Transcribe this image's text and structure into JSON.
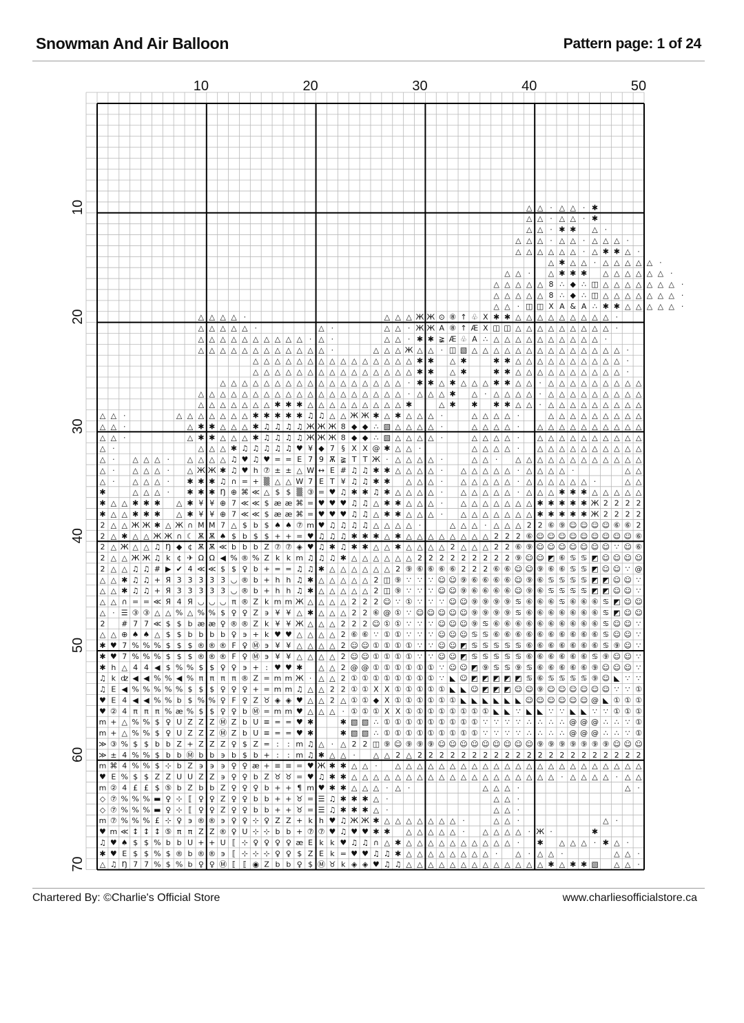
{
  "header": {
    "title": "Snowman And Air Balloon",
    "page_label": "Pattern page: 1 of 24"
  },
  "footer": {
    "charted_by": "Chartered By: ©Charlie's Official Store",
    "website": "www.charliesofficialstore.ca"
  },
  "grid": {
    "columns": 50,
    "rows": 70,
    "column_labels": [
      "10",
      "20",
      "30",
      "40",
      "50"
    ],
    "row_labels": [
      "10",
      "20",
      "30",
      "40",
      "50",
      "60",
      "70"
    ],
    "line_color": "#b8b8b8",
    "major_line_color": "#000000"
  },
  "pattern_rows": [
    [
      "",
      "",
      "",
      "",
      ""
    ],
    [
      "",
      "",
      "",
      "",
      ""
    ],
    [
      "",
      "",
      "",
      "",
      ""
    ],
    [
      "",
      "",
      "",
      "",
      ""
    ],
    [
      "",
      "",
      "",
      "",
      ""
    ],
    [
      "",
      "",
      "",
      "",
      ""
    ],
    [
      "",
      "",
      "",
      "",
      ""
    ],
    [
      "",
      "",
      "",
      "",
      ""
    ],
    [
      "",
      "",
      "",
      "",
      ""
    ],
    [
      "",
      "",
      "",
      "         △",
      "△·△△·✱"
    ],
    [
      "",
      "",
      "",
      "         △",
      "△·△△·✱"
    ],
    [
      "",
      "",
      "",
      "         △",
      "△·✱✱ △·"
    ],
    [
      "",
      "",
      "",
      "        △△",
      "△·△△·△△△·"
    ],
    [
      "",
      "",
      "",
      "        △△",
      "△△△△·△✱✱△·"
    ],
    [
      "",
      "",
      "",
      "",
      " △✱△△·△△△△",
      "△·"
    ],
    [
      "",
      "",
      "",
      "       △△·",
      " △✱✱✱ △△△△",
      "△△·"
    ],
    [
      "",
      "",
      "",
      "      △△△△",
      "△8∴◆∴◫△△△△",
      "△△△·"
    ],
    [
      "",
      "",
      "",
      "      △△△△",
      "△8∴◆∴◫△△△△",
      "△△△·"
    ],
    [
      "",
      "",
      "",
      "      △△·◫",
      "◫XA&A∴✱✱△△",
      "△△△·"
    ],
    [
      "         △",
      "△△△·",
      "      △△△Ж",
      "Ж⊙⑧↑♧X✱✱△△",
      "△△△△△△△·"
    ],
    [
      "         △",
      "△△△△·",
      "△·    △△·Ж",
      "ЖA⑧↑ÆX◫◫△△",
      "△△△△△△△·"
    ],
    [
      "         △",
      "△△△△△△△△△·",
      "△·    △△·✱",
      "✱≩Æ♧A∴△△△△",
      "△△△△△△·"
    ],
    [
      "         △",
      "△△△△△△△△△△",
      "△·   △△△Ж△",
      "△·◫▧△△△△△△",
      "△△△△△△△△·"
    ],
    [
      "",
      "    △△△△△△",
      "△△△△△△△△△✱",
      "✱ △✱  ✱✱△△",
      "△△△△△△△△·"
    ],
    [
      "",
      "    △△△△△△",
      "△△△△△△△△△✱",
      "✱ △✱  ✱✱△△",
      "△△△△△△△△·"
    ],
    [
      "",
      " △△△△△△△△△",
      "△△△△△△△△·✱",
      "✱△✱△△△✱✱△△",
      "·△△△△△△△△△"
    ],
    [
      "         △",
      "△△△△△△△△△△",
      "△△△△△△△△·△",
      "△△✱ △·△△△△",
      "·△△△△△△△△△"
    ],
    [
      "         △",
      "△△△△△△✱✱✱△",
      "△△△△△△△△✱ ",
      " △✱ ✱ ✱✱△△",
      "·△△△△△△△△△"
    ],
    [
      "△△·    △△△",
      "△△△△✱✱✱✱✱♫",
      "♫△△ЖЖ✱△✱△△",
      "△·  △△△△·",
      " △△△△△△△△△"
    ],
    [
      "△△·     △✱",
      "✱△△△✱♫♫♫♫Ж",
      "ЖЖ8◆◆∴▧△△△",
      "△·  △△△△·",
      "△△△△△△△△△△"
    ],
    [
      "△△·     △✱",
      "✱△△△✱♫♫♫♫Ж",
      "ЖЖ8◆◆∴▧△△△",
      "△·  △△△△·",
      "△△△△△△△△△△"
    ],
    [
      "△·       △",
      "△△✱♫♫♫♫♫♥¥",
      "◆7§XX@✱△△·",
      "    △△△△·",
      "△△△△△△△△△△"
    ],
    [
      "△· △△△· △△",
      "△△♫♥♫♥==E7",
      "9Ѫ≩TTЖ·△△△",
      "△·  △△· △△",
      "△△△△△△△△△△"
    ],
    [
      "△· △△△· △Ж",
      "Ж✱♫♥h⑦±±△W",
      "↔E#♫♫✱✱△△△",
      "△· △△△△△·△",
      "△△△·    △△"
    ],
    [
      "△· △△△· ✱✱",
      "✱♫∩=+▒△△W7",
      "ET¥♫♫✱✱ △△",
      "△· △△△△△·△",
      "△△△△△·  △△"
    ],
    [
      "✱  △△△· ✱✱",
      "✱Ŋ⊕⌘≪△$$▒③",
      "=♥♫✱✱♫✱△△△",
      "△· △△△△△·△",
      "△△✱✱✱△△△△△"
    ],
    [
      "✱△△✱✱✱ △✱¥",
      "¥⊕7≪≪$ææ⌘=",
      "♥♥♥♫♫△✱✱△△",
      "△· △△△△△△△",
      "✱✱✱✱✱Ж2222"
    ],
    [
      "✱△△✱✱✱ △✱¥",
      "¥⊕7≪≪$ææ⌘=",
      "♥♥♥♫♫△✱✱△△",
      "△· △△△△△△△",
      "✱✱✱✱✱Ж2222"
    ],
    [
      "2△△ЖЖ✱△Ж∩M",
      "M7△$b$♠♠⑦m",
      "♥♫♫♫♫△△△△·",
      "  △△△·△△△2",
      "2⑥⑨☺☺☺☺⑥⑥2"
    ],
    [
      "2△✱△△ЖЖ∩☾Ѫ",
      "Ѫ♠$b$$++=♥",
      "♫♫♫✱✱✱△✱△△",
      "△△△△△△222⑥",
      "☺☺☺☺☺☺☺☺☺⑥"
    ],
    [
      "2△Ж△△♫Ŋ◆¢Ѫ",
      "Ѫ≪bbbZ⑦⑦◈♥",
      "♫✱♫✱✱△△✱△△",
      "△△2△△△22⑥⑨",
      "☺☺☺☺☺☺☺∵☺⑥"
    ],
    [
      "2△△ЖЖ♫k¢✈Ω",
      "Ω◀%®%Zkkm♫",
      "♫♫✱△△△△△△2",
      "22222222⑨☺",
      "☺◩⑥♋♋◩☺☺☺☺"
    ],
    [
      "2△△♫♫#▶✔4≪",
      "≪$$♀b+==♫♫",
      "✱△△△△△△2⑨⑥",
      "⑥⑥⑥222⑥⑥☺☺",
      "⑨⑥⑥♋♋◩☺☺∵@"
    ],
    [
      "△△✱♫♫+Я333",
      "33◡®b+hh♫✱",
      "△△△△△2◫⑨∵∵",
      "∵☺☺⑨⑥⑥⑥⑥☺⑨",
      "⑥♋♋♋♋◩◩☺☺∵"
    ],
    [
      "△△✱♫♫+Я333",
      "33◡®b+hh♫✱",
      "△△△△△2◫⑨∵∵",
      "∵☺☺⑨⑥⑥⑥⑥☺⑨",
      "⑥♋♋♋♋◩◩☺☺∵"
    ],
    [
      "△△∩==≪Я4Я◡",
      "◡◡π®ZkmmЖ△",
      "△△△222☺∵①∵",
      "∵∵☺☺⑨⑨⑨⑨♋⑥",
      "⑥⑥♋⑥⑥⑥♋◩☺☺"
    ],
    [
      "△·☰③③△△%△%",
      "%$♀♀Z϶¥¥△✱",
      "△△△22⑥@①∵☺",
      "☺☺☺☺⑨⑨⑨⑨♋⑥",
      "⑥⑥⑥⑥⑥⑥♋◩☺☺"
    ],
    [
      "2 #77≪$$bæ",
      "æ♀®®Zk¥¥Ж△",
      "△△222☺①①∵∵",
      "∵☺☺☺⑨♋⑥⑥⑥⑥",
      "⑥⑥⑥⑥⑥⑥♋☺☺∵"
    ],
    [
      "△△⊕♠♠△$$bb",
      "bb♀϶+k♥♥△△",
      "△△2⑥⑥∵①①∵∵",
      "∵☺☺☺♋♋⑥⑥⑥⑥",
      "⑥⑥⑥⑥⑥⑥♋☺☺∵"
    ],
    [
      "✱♥7%%%$$$®",
      "®®F♀Ⓜ϶¥¥△△",
      "△△2☺☺①①①①∵",
      "∵☺☺◩♋♋♋♋♋⑥",
      "⑥⑥⑥⑥⑥⑥♋⑨☺∵"
    ],
    [
      "✱♥7%%%$$$®",
      "®®F♀Ⓜ϶¥¥△△",
      "△△2☺☺①①①①∵",
      "∵☺☺◩♋♋♋♋♋⑥",
      "⑥⑥⑥⑥⑥♋⑨☺☺∵"
    ],
    [
      "✱h△44◀$%%$",
      "$♀♀϶+:♥♥✱ ",
      "△△2@@①①①①①",
      "①∵☺☺◩⑨♋♋⑨♋",
      "⑥⑥⑥⑥⑥⑨☺☺☺∵"
    ],
    [
      "♫kʣ◀◀%%◀%π",
      "πππ®Z=mmЖ·",
      "△△2①①①①①①①",
      "①∵◣☺◩◩◩◩◩♋",
      "⑥♋♋♋♋⑨☺◣∵∵"
    ],
    [
      "♫E◀%%%%%$$",
      "$♀♀♀+=mm♫△",
      "△22①①XX①①①",
      "①①◣◣☺◩◩◩☺☺",
      "⑨☺☺☺☺☺☺∵∵①"
    ],
    [
      "♥E4◀◀%%b$%",
      "%♀F♀Z♉◈◈♥△",
      "△2△①①◆X①①①",
      "①①①◣◣◣◣◣◣☺",
      "☺☺☺☺☺@◣①①①"
    ],
    [
      "♥②4πππ%æ%$",
      "$♀♀bⓂ=mm♥△",
      "△△·①①①XX①①",
      "①①①①①①◣◣∵◣",
      "◣∵∵◣◣∵∵①①①"
    ],
    [
      "m+△%%$♀UZZ",
      "ZⓂZbU≡==♥✱",
      "  ✱▧▧∴①①①①",
      "①①①①①∵∵∵∵∴",
      "∴∴∴@@@∴∴∵①"
    ],
    [
      "m+△%%$♀UZZ",
      "ZⓂZbU≡==♥✱",
      "  ✱▧▧∴①①①①",
      "①①①①①∵∵∵∵∴",
      "∴∴∴@@@∴∴∵①"
    ],
    [
      "≫③%$$bbZ+Z",
      "ZZ♀$Z=::m♫",
      "△·△22◫⑨☺⑨⑨",
      "⑨☺☺☺☺☺☺☺☺☺",
      "⑨⑨⑨⑨⑨⑨⑨☺☺☺"
    ],
    [
      "≫±4%%$bbⓂb",
      "b϶b$b+::m♫",
      "✱△△· △△2△2",
      "2222222222",
      "2222222222"
    ],
    [
      "m⌘4%%$⊹bZ϶",
      "϶϶♀♀æ+≡≡=♥",
      "Ж✱✱△△· △△△",
      "△△△△△△△△△△",
      "△△△△△△△△△△"
    ],
    [
      "♥E%$$ZZUUZ",
      "Z϶♀♀bZ♉♉=♥",
      "♫✱✱△△△△△△△",
      "△△△△△△△△△△",
      "△△·△△△△·△△"
    ],
    [
      "m②4££$⑤bZb",
      "bZ♀♀♀b++¶m",
      "♥✱✱△△△·△· ",
      "     △△△· ",
      "        △·"
    ],
    [
      "◇⑦%%%▬♀⊹⟦♀",
      "♀Z♀♀bb++♉=",
      "☰♫✱✱✱△·   ",
      "      △△· ",
      ""
    ],
    [
      "◇⑦%%%▬♀⊹⟦♀",
      "♀Z♀♀bb++♉=",
      "☰♫✱✱✱△·   ",
      "      △△· ",
      ""
    ],
    [
      "m⑦%%%£⊹♀϶®",
      "®϶♀♀⊹♀ZZ+k",
      "h♥♫ЖЖ✱△△△△",
      "△△△·  △△· ",
      "      △·  "
    ],
    [
      "♥m≪↕↕↕⑤ππZ",
      "Z®♀U⊹⊹bb+⑦",
      "⑦♥♫♥♥✱✱ △△",
      "△△△· △△△△·",
      "Ж·   ✱    "
    ],
    [
      "♫♥♠$$%bbU+",
      "+U⟦⊹♀♀♀♀æE",
      "kk♥♫♫∩△✱△△",
      "△△△△△△△△· ",
      "✱ △△△·✱△· "
    ],
    [
      "✱♥E$$%$®b®",
      "®϶⟦⊹⊹⊹♀♀$Z",
      "Ek=♥♥♫♫✱△△",
      "△△△△△△· △·",
      "△△·    △△·"
    ],
    [
      "△♫Ŋ77%$%b♀",
      "♀Ⓜ⟦⟦◉Zbb♀$",
      "Ⓜ♉k◈◈♥♫♫△△",
      "△△△△△△△△△△",
      "△✱△✱✱▧ △△·"
    ]
  ]
}
